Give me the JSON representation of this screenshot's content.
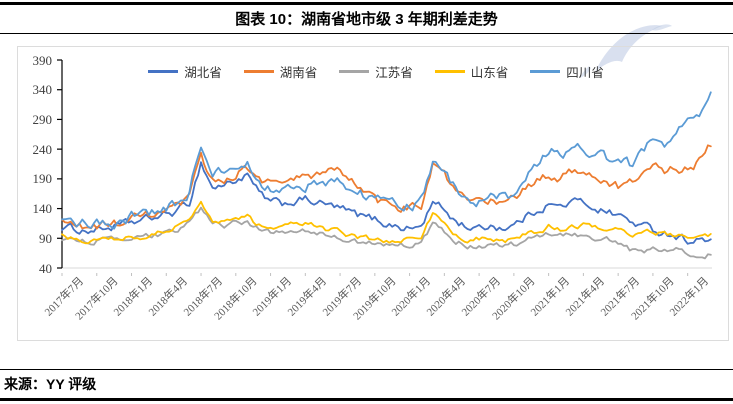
{
  "header": {
    "title": "图表 10：湖南省地市级 3 年期利差走势"
  },
  "footer": {
    "source": "来源：YY 评级"
  },
  "watermark": {
    "name": "yy-logo-watermark",
    "color": "#b9c7e2"
  },
  "chart_data": {
    "type": "line",
    "title": "湖南省地市级 3 年期利差走势",
    "xlabel": "",
    "ylabel": "",
    "ylim": [
      40,
      390
    ],
    "y_ticks": [
      390,
      340,
      290,
      240,
      190,
      140,
      90,
      40
    ],
    "grid": false,
    "legend_position": "top",
    "x_tick_labels": [
      "2017年7月",
      "2017年10月",
      "2018年1月",
      "2018年4月",
      "2018年7月",
      "2018年10月",
      "2019年1月",
      "2019年4月",
      "2019年7月",
      "2019年10月",
      "2020年1月",
      "2020年4月",
      "2020年7月",
      "2020年10月",
      "2021年1月",
      "2021年4月",
      "2021年7月",
      "2021年10月",
      "2022年1月"
    ],
    "months_per_tick": 3,
    "start_month": "2017-07",
    "series": [
      {
        "name": "湖北省",
        "color": "#4472C4",
        "noise": 6,
        "values": [
          109,
          106,
          103,
          105,
          108,
          111,
          116,
          120,
          125,
          130,
          136,
          150,
          218,
          175,
          180,
          188,
          195,
          165,
          150,
          148,
          152,
          155,
          150,
          145,
          140,
          132,
          126,
          122,
          115,
          110,
          106,
          110,
          150,
          138,
          118,
          110,
          105,
          112,
          108,
          112,
          125,
          138,
          148,
          142,
          152,
          150,
          142,
          135,
          130,
          118,
          112,
          104,
          100,
          95,
          87,
          88,
          84
        ]
      },
      {
        "name": "湖南省",
        "color": "#ED7D31",
        "noise": 7,
        "values": [
          116,
          112,
          108,
          110,
          113,
          116,
          121,
          125,
          130,
          134,
          140,
          155,
          228,
          185,
          190,
          200,
          208,
          192,
          183,
          180,
          188,
          193,
          197,
          200,
          203,
          190,
          170,
          152,
          145,
          143,
          143,
          148,
          212,
          195,
          165,
          152,
          148,
          155,
          150,
          158,
          172,
          185,
          196,
          190,
          205,
          205,
          198,
          185,
          176,
          180,
          195,
          215,
          205,
          210,
          205,
          218,
          248
        ]
      },
      {
        "name": "江苏省",
        "color": "#A5A5A5",
        "noise": 4,
        "values": [
          89,
          87,
          85,
          86,
          87,
          86,
          87,
          91,
          95,
          99,
          105,
          114,
          140,
          115,
          112,
          116,
          118,
          106,
          99,
          101,
          104,
          105,
          100,
          94,
          88,
          85,
          83,
          82,
          80,
          79,
          79,
          84,
          112,
          100,
          85,
          78,
          78,
          80,
          77,
          80,
          88,
          94,
          100,
          96,
          98,
          95,
          92,
          88,
          82,
          70,
          65,
          72,
          70,
          75,
          68,
          62,
          63
        ]
      },
      {
        "name": "山东省",
        "color": "#FFC000",
        "noise": 4,
        "values": [
          93,
          90,
          88,
          90,
          91,
          90,
          90,
          94,
          99,
          104,
          110,
          120,
          150,
          122,
          118,
          121,
          125,
          112,
          104,
          108,
          112,
          116,
          110,
          105,
          100,
          94,
          90,
          87,
          86,
          87,
          88,
          92,
          132,
          115,
          95,
          88,
          90,
          88,
          85,
          86,
          95,
          102,
          110,
          106,
          112,
          113,
          110,
          106,
          108,
          100,
          96,
          100,
          98,
          96,
          96,
          93,
          95
        ]
      },
      {
        "name": "四川省",
        "color": "#5B9BD5",
        "noise": 8,
        "values": [
          122,
          118,
          115,
          116,
          118,
          120,
          126,
          130,
          136,
          142,
          148,
          165,
          250,
          195,
          200,
          210,
          222,
          185,
          172,
          170,
          175,
          178,
          182,
          185,
          188,
          175,
          165,
          154,
          148,
          145,
          142,
          150,
          222,
          205,
          175,
          160,
          150,
          165,
          158,
          165,
          185,
          215,
          238,
          230,
          242,
          242,
          235,
          225,
          228,
          215,
          235,
          258,
          245,
          265,
          300,
          290,
          332
        ]
      }
    ]
  }
}
